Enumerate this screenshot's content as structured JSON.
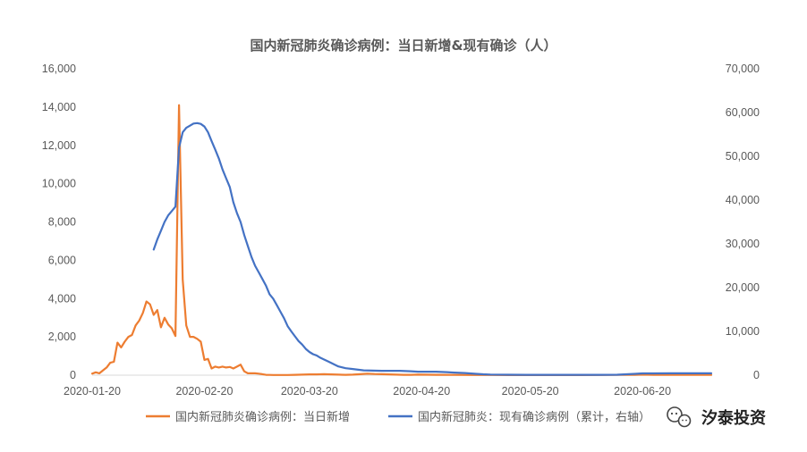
{
  "chart_data": {
    "type": "line",
    "title": "国内新冠肺炎确诊病例：当日新增&现有确诊（人）",
    "x_tick_labels": [
      "2020-01-20",
      "2020-02-20",
      "2020-03-20",
      "2020-04-20",
      "2020-05-20",
      "2020-06-20"
    ],
    "x_tick_days": [
      0,
      31,
      60,
      91,
      121,
      152
    ],
    "xlim_days": [
      0,
      171
    ],
    "left_axis": {
      "ylim": [
        0,
        16000
      ],
      "ticks": [
        0,
        2000,
        4000,
        6000,
        8000,
        10000,
        12000,
        14000,
        16000
      ],
      "tick_labels": [
        "0",
        "2,000",
        "4,000",
        "6,000",
        "8,000",
        "10,000",
        "12,000",
        "14,000",
        "16,000"
      ]
    },
    "right_axis": {
      "ylim": [
        0,
        70000
      ],
      "ticks": [
        0,
        10000,
        20000,
        30000,
        40000,
        50000,
        60000,
        70000
      ],
      "tick_labels": [
        "0",
        "10,000",
        "20,000",
        "30,000",
        "40,000",
        "50,000",
        "60,000",
        "70,000"
      ]
    },
    "series": [
      {
        "name": "国内新冠肺炎确诊病例：当日新增",
        "axis": "left",
        "color": "#ED7D31",
        "points": [
          [
            0,
            80
          ],
          [
            1,
            150
          ],
          [
            2,
            100
          ],
          [
            3,
            250
          ],
          [
            4,
            400
          ],
          [
            5,
            650
          ],
          [
            6,
            700
          ],
          [
            7,
            1700
          ],
          [
            8,
            1450
          ],
          [
            9,
            1750
          ],
          [
            10,
            2000
          ],
          [
            11,
            2100
          ],
          [
            12,
            2600
          ],
          [
            13,
            2850
          ],
          [
            14,
            3250
          ],
          [
            15,
            3850
          ],
          [
            16,
            3700
          ],
          [
            17,
            3150
          ],
          [
            18,
            3400
          ],
          [
            19,
            2500
          ],
          [
            20,
            3000
          ],
          [
            21,
            2650
          ],
          [
            22,
            2450
          ],
          [
            23,
            2050
          ],
          [
            24,
            14100
          ],
          [
            25,
            5000
          ],
          [
            26,
            2600
          ],
          [
            27,
            2000
          ],
          [
            28,
            2000
          ],
          [
            29,
            1900
          ],
          [
            30,
            1750
          ],
          [
            31,
            800
          ],
          [
            32,
            850
          ],
          [
            33,
            350
          ],
          [
            34,
            450
          ],
          [
            35,
            400
          ],
          [
            36,
            450
          ],
          [
            37,
            400
          ],
          [
            38,
            430
          ],
          [
            39,
            350
          ],
          [
            40,
            450
          ],
          [
            41,
            550
          ],
          [
            42,
            200
          ],
          [
            43,
            100
          ],
          [
            44,
            100
          ],
          [
            45,
            100
          ],
          [
            46,
            80
          ],
          [
            47,
            50
          ],
          [
            48,
            20
          ],
          [
            49,
            15
          ],
          [
            50,
            10
          ],
          [
            52,
            10
          ],
          [
            54,
            10
          ],
          [
            56,
            20
          ],
          [
            58,
            30
          ],
          [
            60,
            40
          ],
          [
            62,
            40
          ],
          [
            64,
            50
          ],
          [
            66,
            40
          ],
          [
            68,
            30
          ],
          [
            70,
            20
          ],
          [
            72,
            30
          ],
          [
            74,
            50
          ],
          [
            76,
            80
          ],
          [
            78,
            60
          ],
          [
            80,
            50
          ],
          [
            82,
            40
          ],
          [
            84,
            30
          ],
          [
            86,
            20
          ],
          [
            88,
            20
          ],
          [
            90,
            30
          ],
          [
            95,
            20
          ],
          [
            100,
            15
          ],
          [
            105,
            10
          ],
          [
            110,
            8
          ],
          [
            115,
            6
          ],
          [
            120,
            5
          ],
          [
            125,
            5
          ],
          [
            130,
            5
          ],
          [
            135,
            5
          ],
          [
            140,
            10
          ],
          [
            145,
            15
          ],
          [
            150,
            20
          ],
          [
            152,
            30
          ],
          [
            155,
            20
          ],
          [
            160,
            15
          ],
          [
            165,
            15
          ],
          [
            171,
            12
          ]
        ]
      },
      {
        "name": "国内新冠肺炎：现有确诊病例（累计，右轴）",
        "axis": "right",
        "color": "#4472C4",
        "points": [
          [
            17,
            28700
          ],
          [
            18,
            31000
          ],
          [
            19,
            33000
          ],
          [
            20,
            35000
          ],
          [
            21,
            36500
          ],
          [
            22,
            37500
          ],
          [
            23,
            38500
          ],
          [
            24,
            52000
          ],
          [
            25,
            55500
          ],
          [
            26,
            56500
          ],
          [
            27,
            57000
          ],
          [
            28,
            57500
          ],
          [
            29,
            57600
          ],
          [
            30,
            57400
          ],
          [
            31,
            56800
          ],
          [
            32,
            55500
          ],
          [
            33,
            53500
          ],
          [
            34,
            51500
          ],
          [
            35,
            49500
          ],
          [
            36,
            47000
          ],
          [
            37,
            45000
          ],
          [
            38,
            43000
          ],
          [
            39,
            39500
          ],
          [
            40,
            37000
          ],
          [
            41,
            35000
          ],
          [
            42,
            32000
          ],
          [
            43,
            29500
          ],
          [
            44,
            27000
          ],
          [
            45,
            25000
          ],
          [
            46,
            23500
          ],
          [
            47,
            22000
          ],
          [
            48,
            20500
          ],
          [
            49,
            18500
          ],
          [
            50,
            17500
          ],
          [
            51,
            16000
          ],
          [
            52,
            14500
          ],
          [
            53,
            13000
          ],
          [
            54,
            11200
          ],
          [
            55,
            10000
          ],
          [
            56,
            8900
          ],
          [
            57,
            7800
          ],
          [
            58,
            7000
          ],
          [
            59,
            6000
          ],
          [
            60,
            5300
          ],
          [
            61,
            4800
          ],
          [
            62,
            4500
          ],
          [
            63,
            4000
          ],
          [
            64,
            3600
          ],
          [
            65,
            3200
          ],
          [
            66,
            2800
          ],
          [
            67,
            2400
          ],
          [
            68,
            2000
          ],
          [
            69,
            1800
          ],
          [
            70,
            1600
          ],
          [
            72,
            1400
          ],
          [
            75,
            1100
          ],
          [
            80,
            1000
          ],
          [
            85,
            1000
          ],
          [
            88,
            900
          ],
          [
            90,
            800
          ],
          [
            95,
            800
          ],
          [
            98,
            700
          ],
          [
            100,
            600
          ],
          [
            103,
            500
          ],
          [
            106,
            300
          ],
          [
            108,
            200
          ],
          [
            110,
            150
          ],
          [
            115,
            100
          ],
          [
            120,
            80
          ],
          [
            125,
            80
          ],
          [
            130,
            80
          ],
          [
            135,
            80
          ],
          [
            140,
            80
          ],
          [
            145,
            100
          ],
          [
            150,
            300
          ],
          [
            152,
            400
          ],
          [
            155,
            400
          ],
          [
            160,
            420
          ],
          [
            165,
            420
          ],
          [
            171,
            420
          ]
        ]
      }
    ],
    "legend_position": "bottom",
    "grid": false
  },
  "watermark": {
    "text": "汐泰投资",
    "icon": "wechat-icon"
  }
}
